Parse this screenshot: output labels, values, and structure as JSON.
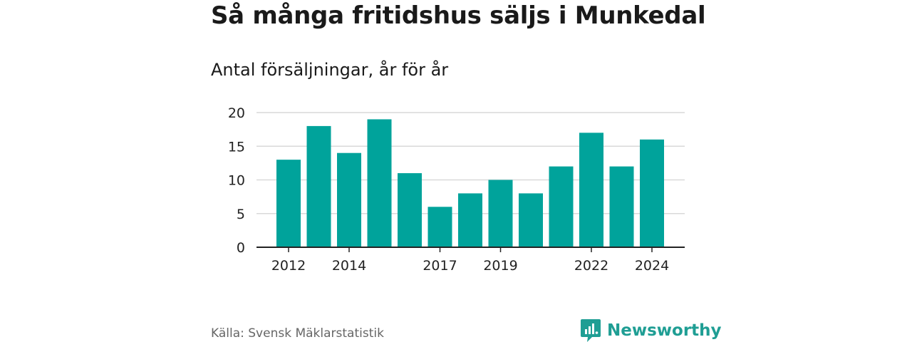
{
  "title": "Så många fritidshus säljs i Munkedal",
  "subtitle": "Antal försäljningar, år för år",
  "source": "Källa: Svensk Mäklarstatistik",
  "brand": "Newsworthy",
  "colors": {
    "bar": "#00a39b",
    "grid": "#d9d9d9",
    "axis": "#222222",
    "brand": "#1f9e94"
  },
  "chart_data": {
    "type": "bar",
    "categories": [
      "2012",
      "2013",
      "2014",
      "2015",
      "2016",
      "2017",
      "2018",
      "2019",
      "2020",
      "2021",
      "2022",
      "2023",
      "2024"
    ],
    "values": [
      13,
      18,
      14,
      19,
      11,
      6,
      8,
      10,
      8,
      12,
      17,
      12,
      16
    ],
    "x_tick_labels": [
      "2012",
      "2014",
      "2017",
      "2019",
      "2022",
      "2024"
    ],
    "y_ticks": [
      0,
      5,
      10,
      15,
      20
    ],
    "ylim": [
      0,
      20
    ],
    "grid": true,
    "legend": "none"
  }
}
